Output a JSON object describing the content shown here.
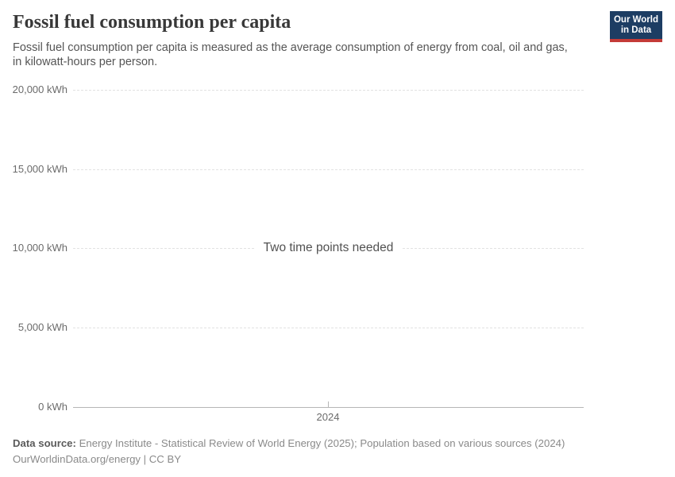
{
  "header": {
    "title": "Fossil fuel consumption per capita",
    "subtitle_line1": "Fossil fuel consumption per capita is measured as the average consumption of energy from coal, oil and gas,",
    "subtitle_line2": "in kilowatt-hours per person.",
    "logo": {
      "line1": "Our World",
      "line2": "in Data"
    }
  },
  "chart_data": {
    "type": "line",
    "title": "Fossil fuel consumption per capita",
    "series": [],
    "empty_state_message": "Two time points needed",
    "ylim": [
      0,
      20000
    ],
    "y_unit": "kWh",
    "grid": "horizontal-dashed",
    "y_ticks": [
      {
        "value": 0,
        "label": "0 kWh"
      },
      {
        "value": 5000,
        "label": "5,000 kWh"
      },
      {
        "value": 10000,
        "label": "10,000 kWh"
      },
      {
        "value": 15000,
        "label": "15,000 kWh"
      },
      {
        "value": 20000,
        "label": "20,000 kWh"
      }
    ],
    "x_ticks": [
      {
        "value": 2024,
        "label": "2024"
      }
    ]
  },
  "footer": {
    "data_source_label": "Data source:",
    "data_source_text": "Energy Institute - Statistical Review of World Energy (2025); Population based on various sources (2024)",
    "attribution": "OurWorldinData.org/energy | CC BY"
  },
  "colors": {
    "logo_bg": "#1d3d63",
    "logo_stripe": "#c43b38",
    "grid": "#e2e2e2",
    "axis": "#b6b6b6",
    "tick_text": "#6b6b6b",
    "title_text": "#383838",
    "subtitle_text": "#555555"
  }
}
